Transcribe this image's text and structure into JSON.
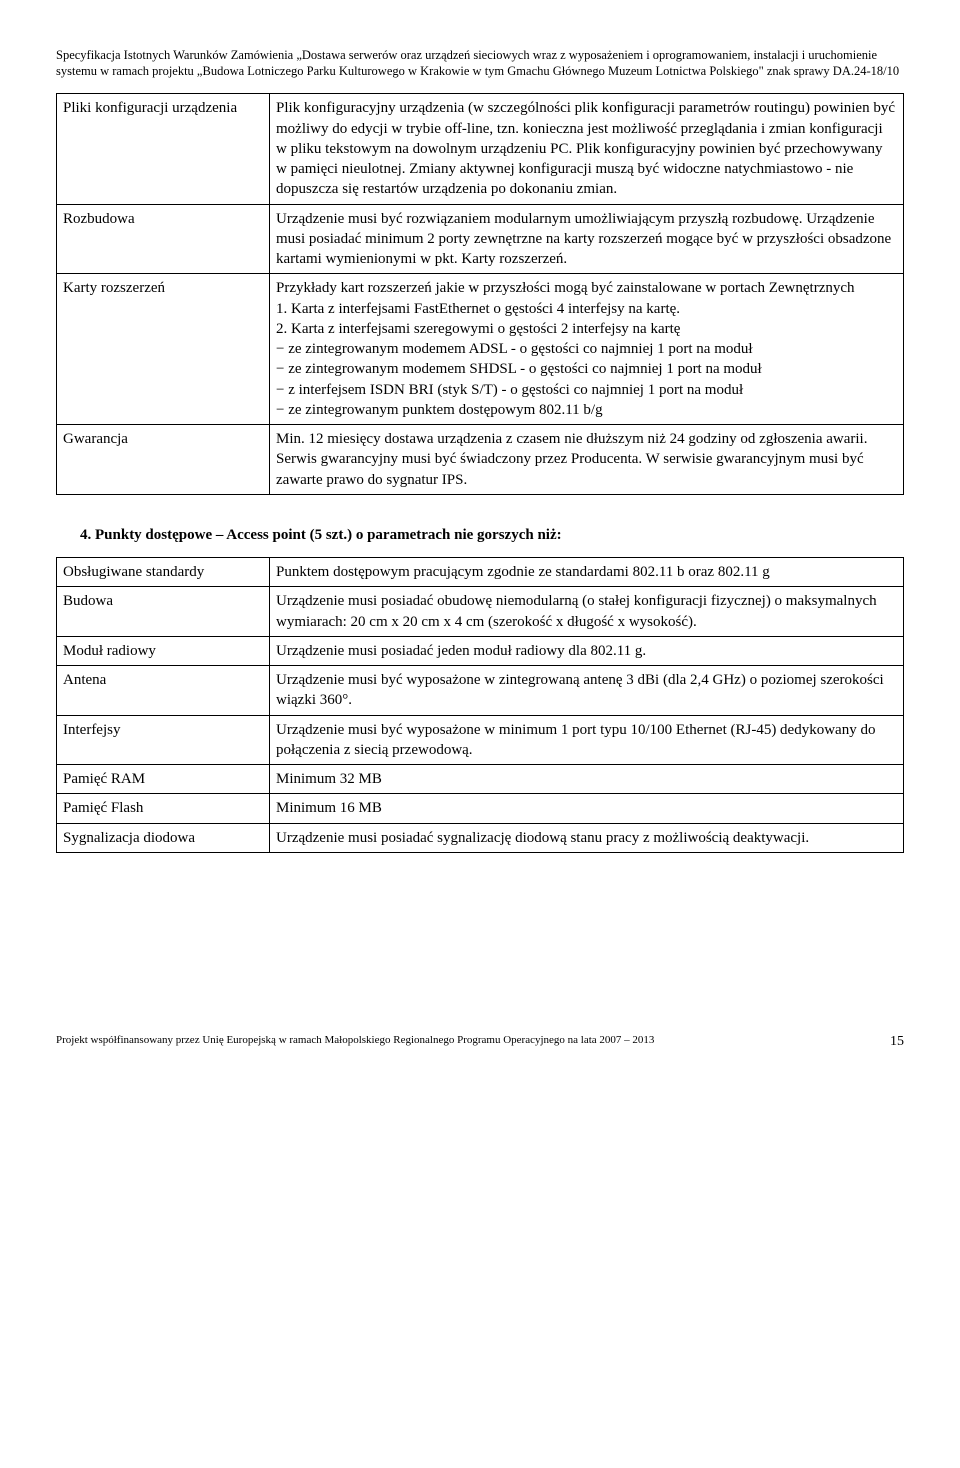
{
  "header": {
    "text": "Specyfikacja Istotnych Warunków Zamówienia „Dostawa serwerów oraz urządzeń sieciowych wraz z wyposażeniem i oprogramowaniem, instalacji i uruchomienie systemu w ramach projektu „Budowa Lotniczego Parku Kulturowego w Krakowie w tym Gmachu Głównego Muzeum Lotnictwa Polskiego\" znak sprawy DA.24-18/10"
  },
  "table1": {
    "rows": [
      {
        "label": "Pliki konfiguracji urządzenia",
        "value": "Plik konfiguracyjny urządzenia (w szczególności plik konfiguracji parametrów routingu) powinien być możliwy do edycji w trybie off-line, tzn. konieczna jest możliwość przeglądania i zmian konfiguracji w pliku tekstowym na dowolnym urządzeniu PC. Plik konfiguracyjny powinien być przechowywany w pamięci nieulotnej. Zmiany aktywnej konfiguracji muszą być widoczne natychmiastowo - nie dopuszcza się restartów urządzenia po dokonaniu zmian."
      },
      {
        "label": "Rozbudowa",
        "value": "Urządzenie musi być rozwiązaniem modularnym umożliwiającym przyszłą rozbudowę. Urządzenie musi posiadać minimum 2 porty zewnętrzne na karty rozszerzeń mogące być w przyszłości obsadzone kartami wymienionymi w pkt. Karty rozszerzeń."
      },
      {
        "label": "Karty rozszerzeń",
        "value": "Przykłady kart rozszerzeń jakie w przyszłości mogą być zainstalowane w portach Zewnętrznych\n1. Karta z interfejsami FastEthernet o gęstości 4 interfejsy na kartę.\n2. Karta z interfejsami szeregowymi o gęstości 2 interfejsy na kartę\n− ze zintegrowanym modemem ADSL - o gęstości co najmniej 1 port na moduł\n− ze zintegrowanym modemem SHDSL - o gęstości co najmniej 1 port na moduł\n− z interfejsem ISDN BRI (styk S/T) - o gęstości co najmniej 1 port na moduł\n− ze zintegrowanym punktem dostępowym 802.11 b/g"
      },
      {
        "label": "Gwarancja",
        "value": "Min. 12 miesięcy dostawa urządzenia z czasem nie dłuższym niż 24 godziny od zgłoszenia awarii. Serwis gwarancyjny musi być świadczony przez Producenta. W serwisie gwarancyjnym musi być zawarte prawo do sygnatur IPS."
      }
    ]
  },
  "section2": {
    "title": "4.   Punkty dostępowe – Access point (5 szt.) o parametrach nie gorszych niż:"
  },
  "table2": {
    "rows": [
      {
        "label": "Obsługiwane standardy",
        "value": "Punktem dostępowym pracującym zgodnie ze standardami 802.11 b oraz 802.11 g"
      },
      {
        "label": "Budowa",
        "value": "Urządzenie musi posiadać obudowę niemodularną (o stałej konfiguracji fizycznej) o maksymalnych wymiarach: 20 cm x 20 cm x 4 cm (szerokość x długość x wysokość)."
      },
      {
        "label": "Moduł radiowy",
        "value": "Urządzenie musi posiadać jeden moduł radiowy dla 802.11 g."
      },
      {
        "label": "Antena",
        "value": "Urządzenie musi być wyposażone w zintegrowaną antenę 3 dBi (dla 2,4 GHz) o poziomej szerokości wiązki 360°."
      },
      {
        "label": "Interfejsy",
        "value": "Urządzenie musi być wyposażone w minimum 1 port typu 10/100 Ethernet (RJ-45) dedykowany do połączenia z siecią przewodową."
      },
      {
        "label": "Pamięć RAM",
        "value": "Minimum 32 MB"
      },
      {
        "label": "Pamięć Flash",
        "value": "Minimum 16 MB"
      },
      {
        "label": "Sygnalizacja diodowa",
        "value": "Urządzenie musi posiadać sygnalizację diodową stanu pracy z możliwością deaktywacji."
      }
    ]
  },
  "footer": {
    "text": "Projekt współfinansowany przez Unię Europejską w ramach Małopolskiego Regionalnego Programu Operacyjnego na lata 2007 – 2013",
    "page": "15"
  }
}
